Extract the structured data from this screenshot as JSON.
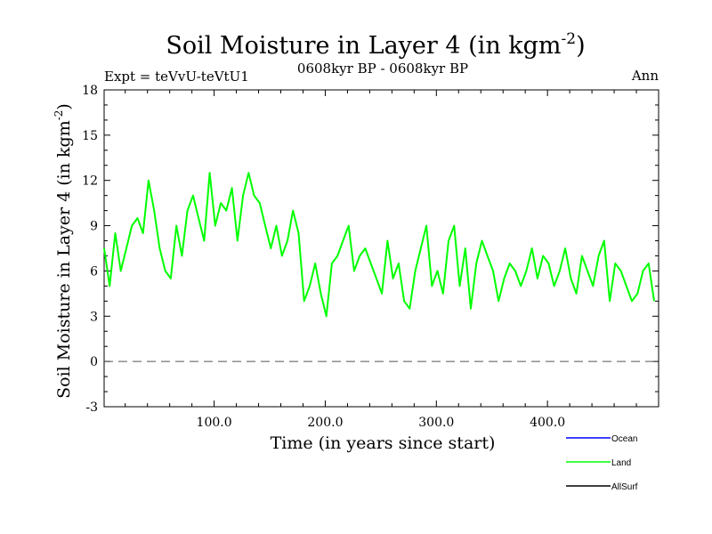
{
  "chart_data": {
    "type": "line",
    "title_main": "Soil Moisture in Layer 4 (in kgm",
    "title_sup": "-2",
    "title_close": ")",
    "subtitle": "0608kyr BP - 0608kyr BP",
    "left_note": "Expt = teVvU-teVtU1",
    "right_note": "Ann",
    "xlabel": "Time (in years since start)",
    "ylabel_main": "Soil Moisture in Layer 4 (in kgm",
    "ylabel_sup": "-2",
    "ylabel_close": ")",
    "xlim": [
      1,
      500
    ],
    "ylim": [
      -3,
      18
    ],
    "x_ticks": [
      100,
      200,
      300,
      400
    ],
    "x_tick_labels": [
      "100.0",
      "200.0",
      "300.0",
      "400.0"
    ],
    "y_ticks": [
      -3,
      0,
      3,
      6,
      9,
      12,
      15,
      18
    ],
    "y_tick_labels": [
      "-3",
      "0",
      "3",
      "6",
      "9",
      "12",
      "15",
      "18"
    ],
    "zero_line": "dashed",
    "legend_position": "bottom-right",
    "series": [
      {
        "name": "Ocean",
        "color": "#0000ff",
        "values": []
      },
      {
        "name": "Land",
        "color": "#00ff00",
        "x_start": 1,
        "x_step": 5,
        "values": [
          7.5,
          5.0,
          8.5,
          6.0,
          7.5,
          9.0,
          9.5,
          8.5,
          12.0,
          10.0,
          7.5,
          6.0,
          5.5,
          9.0,
          7.0,
          10.0,
          11.0,
          9.5,
          8.0,
          12.5,
          9.0,
          10.5,
          10.0,
          11.5,
          8.0,
          11.0,
          12.5,
          11.0,
          10.5,
          9.0,
          7.5,
          9.0,
          7.0,
          8.0,
          10.0,
          8.5,
          4.0,
          5.0,
          6.5,
          4.5,
          3.0,
          6.5,
          7.0,
          8.0,
          9.0,
          6.0,
          7.0,
          7.5,
          6.5,
          5.5,
          4.5,
          8.0,
          5.5,
          6.5,
          4.0,
          3.5,
          6.0,
          7.5,
          9.0,
          5.0,
          6.0,
          4.5,
          8.0,
          9.0,
          5.0,
          7.5,
          3.5,
          6.5,
          8.0,
          7.0,
          6.0,
          4.0,
          5.5,
          6.5,
          6.0,
          5.0,
          6.0,
          7.5,
          5.5,
          7.0,
          6.5,
          5.0,
          6.0,
          7.5,
          5.5,
          4.5,
          7.0,
          6.0,
          5.0,
          7.0,
          8.0,
          4.0,
          6.5,
          6.0,
          5.0,
          4.0,
          4.5,
          6.0,
          6.5,
          4.0
        ]
      },
      {
        "name": "AllSurf",
        "color": "#000000",
        "values": []
      }
    ]
  }
}
